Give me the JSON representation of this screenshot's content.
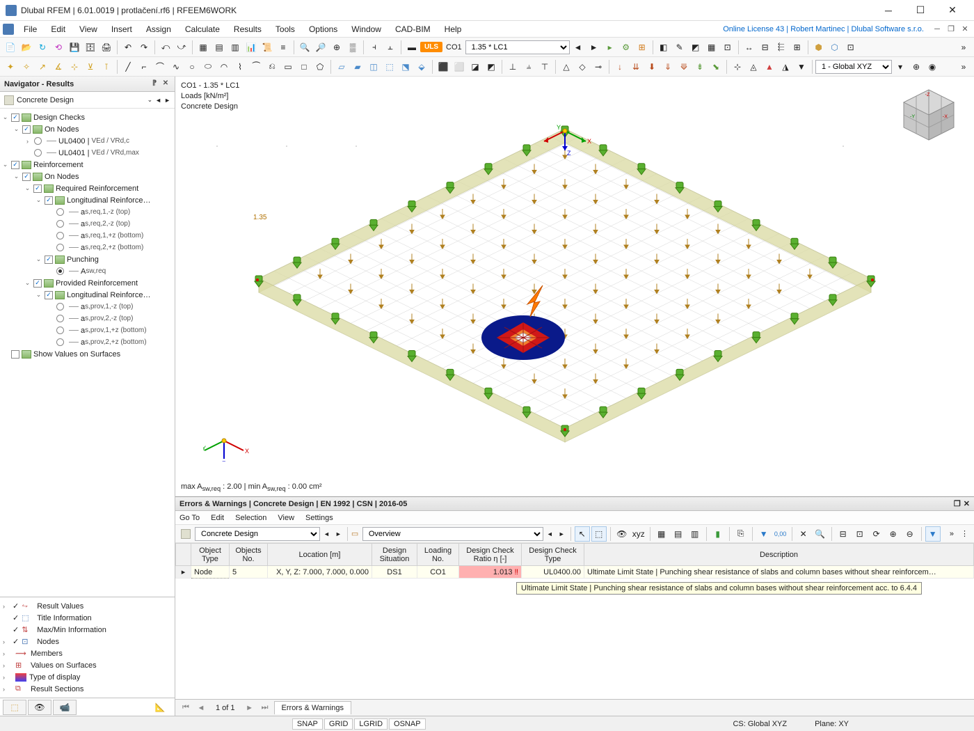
{
  "window": {
    "title": "Dlubal RFEM | 6.01.0019 | protlačení.rf6 | RFEEM6WORK",
    "license": "Online License 43 | Robert Martinec | Dlubal Software s.r.o."
  },
  "menus": [
    "File",
    "Edit",
    "View",
    "Insert",
    "Assign",
    "Calculate",
    "Results",
    "Tools",
    "Options",
    "Window",
    "CAD-BIM",
    "Help"
  ],
  "toolbar1": {
    "uls": "ULS",
    "co": "CO1",
    "lc_combo": "1.35 * LC1",
    "cs_combo": "1 - Global XYZ"
  },
  "navigator": {
    "title": "Navigator - Results",
    "category": "Concrete Design",
    "tree": {
      "design_checks": "Design Checks",
      "on_nodes": "On Nodes",
      "ul0400": "UL0400 |",
      "ul0400_sub": "VEd / VRd,c",
      "ul0401": "UL0401 |",
      "ul0401_sub": "VEd / VRd,max",
      "reinforcement": "Reinforcement",
      "required": "Required Reinforcement",
      "longitudinal": "Longitudinal Reinforce…",
      "items": {
        "a1": "a",
        "a1s": "s,req,1,-z (top)",
        "a2": "a",
        "a2s": "s,req,2,-z (top)",
        "a3": "a",
        "a3s": "s,req,1,+z (bottom)",
        "a4": "a",
        "a4s": "s,req,2,+z (bottom)"
      },
      "punching": "Punching",
      "asw": "A",
      "asws": "sw,req",
      "provided": "Provided Reinforcement",
      "p_items": {
        "a1": "a",
        "a1s": "s,prov,1,-z (top)",
        "a2": "a",
        "a2s": "s,prov,2,-z (top)",
        "a3": "a",
        "a3s": "s,prov,1,+z (bottom)",
        "a4": "a",
        "a4s": "s,prov,2,+z (bottom)"
      },
      "show_values": "Show Values on Surfaces"
    },
    "options": [
      "Result Values",
      "Title Information",
      "Max/Min Information",
      "Nodes",
      "Members",
      "Values on Surfaces",
      "Type of display",
      "Result Sections"
    ]
  },
  "viewport": {
    "line1": "CO1 - 1.35 * LC1",
    "line2": "Loads [kN/m²]",
    "line3": "Concrete Design",
    "load_value": "1.35",
    "status": "max A",
    "status_sub1": "sw,req",
    "status_mid": " : 2.00 | min A",
    "status_sub2": "sw,req",
    "status_end": " : 0.00 cm²"
  },
  "errors_panel": {
    "title": "Errors & Warnings | Concrete Design | EN 1992 | CSN | 2016-05",
    "menus": [
      "Go To",
      "Edit",
      "Selection",
      "View",
      "Settings"
    ],
    "combo1": "Concrete Design",
    "combo2": "Overview",
    "columns": [
      "Object Type",
      "Objects No.",
      "Location [m]",
      "Design Situation",
      "Loading No.",
      "Design Check Ratio η [-]",
      "Design Check Type",
      "Description"
    ],
    "row": {
      "type": "Node",
      "no": "5",
      "location": "X, Y, Z: 7.000, 7.000, 0.000",
      "ds": "DS1",
      "loading": "CO1",
      "ratio": "1.013",
      "check": "UL0400.00",
      "desc": "Ultimate Limit State | Punching shear resistance of slabs and column bases without shear reinforcem…"
    },
    "tooltip": "Ultimate Limit State | Punching shear resistance of slabs and column bases without shear reinforcement acc. to 6.4.4",
    "pager": "1 of 1",
    "tab": "Errors & Warnings"
  },
  "statusbar": {
    "snap": "SNAP",
    "grid": "GRID",
    "lgrid": "LGRID",
    "osnap": "OSNAP",
    "cs": "CS: Global XYZ",
    "plane": "Plane: XY"
  },
  "colors": {
    "punch_outer": "#0a1a8a",
    "punch_mid": "#d01818",
    "punch_inner": "#f08030",
    "slab_wall": "#dadaa2",
    "slab_wall_stroke": "#c6c690",
    "support": "#5ab030",
    "grid": "#c8c8c8",
    "edge": "#909050"
  }
}
